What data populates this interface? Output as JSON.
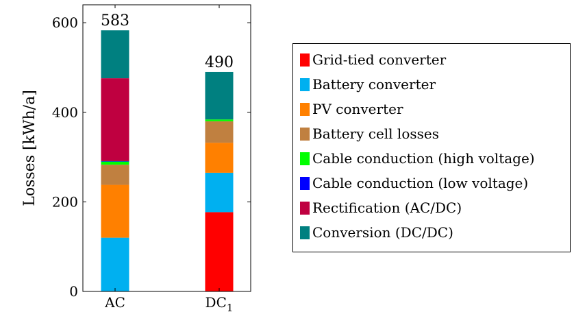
{
  "chart_data": {
    "type": "bar",
    "stacked": true,
    "ylabel": "Losses [kWh/a]",
    "ylim": [
      0,
      640
    ],
    "yticks": [
      0,
      200,
      400,
      600
    ],
    "categories": [
      {
        "main": "AC",
        "sub": ""
      },
      {
        "main": "DC",
        "sub": "1"
      }
    ],
    "totals": [
      "583",
      "490"
    ],
    "series": [
      {
        "name": "Grid-tied converter",
        "color": "#ff0000",
        "values": [
          0,
          177
        ]
      },
      {
        "name": "Battery converter",
        "color": "#00b0f0",
        "values": [
          120,
          88
        ]
      },
      {
        "name": "PV converter",
        "color": "#ff8000",
        "values": [
          118,
          67
        ]
      },
      {
        "name": "Battery cell losses",
        "color": "#c08040",
        "values": [
          45,
          48
        ]
      },
      {
        "name": "Cable conduction (high voltage)",
        "color": "#00ff00",
        "values": [
          7,
          4
        ]
      },
      {
        "name": "Cable conduction (low voltage)",
        "color": "#0000ff",
        "values": [
          1,
          0
        ]
      },
      {
        "name": "Rectification (AC/DC)",
        "color": "#bf0040",
        "values": [
          185,
          0
        ]
      },
      {
        "name": "Conversion (DC/DC)",
        "color": "#008080",
        "values": [
          107,
          106
        ]
      }
    ],
    "legend_position": "right",
    "grid": false
  }
}
